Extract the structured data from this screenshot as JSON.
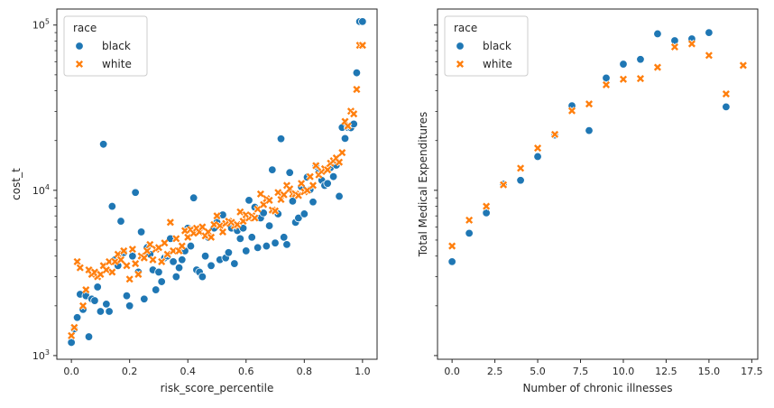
{
  "chart_data": [
    {
      "type": "scatter",
      "title": "",
      "xlabel": "risk_score_percentile",
      "ylabel": "cost_t",
      "y_scale": "log",
      "xlim": [
        -0.05,
        1.05
      ],
      "ylim": [
        950,
        125000
      ],
      "x_ticks": [
        0.0,
        0.2,
        0.4,
        0.6,
        0.8,
        1.0
      ],
      "x_tick_labels": [
        "0.0",
        "0.2",
        "0.4",
        "0.6",
        "0.8",
        "1.0"
      ],
      "y_ticks": [
        1000,
        10000,
        100000
      ],
      "y_tick_labels": [
        {
          "base": "10",
          "exp": "3"
        },
        {
          "base": "10",
          "exp": "4"
        },
        {
          "base": "10",
          "exp": "5"
        }
      ],
      "grid": false,
      "legend": {
        "title": "race",
        "placement": "upper-left",
        "entries": [
          "black",
          "white"
        ]
      },
      "series": [
        {
          "name": "black",
          "color": "#1f77b4",
          "marker": "circle",
          "x": [
            0.0,
            0.01,
            0.02,
            0.03,
            0.04,
            0.05,
            0.06,
            0.07,
            0.08,
            0.09,
            0.1,
            0.11,
            0.12,
            0.13,
            0.14,
            0.15,
            0.16,
            0.17,
            0.18,
            0.19,
            0.2,
            0.21,
            0.22,
            0.23,
            0.24,
            0.25,
            0.26,
            0.27,
            0.28,
            0.29,
            0.3,
            0.31,
            0.32,
            0.33,
            0.34,
            0.35,
            0.36,
            0.37,
            0.38,
            0.39,
            0.4,
            0.41,
            0.42,
            0.43,
            0.44,
            0.45,
            0.46,
            0.47,
            0.48,
            0.49,
            0.5,
            0.51,
            0.52,
            0.53,
            0.54,
            0.55,
            0.56,
            0.57,
            0.58,
            0.59,
            0.6,
            0.61,
            0.62,
            0.63,
            0.64,
            0.65,
            0.66,
            0.67,
            0.68,
            0.69,
            0.7,
            0.71,
            0.72,
            0.73,
            0.74,
            0.75,
            0.76,
            0.77,
            0.78,
            0.79,
            0.8,
            0.81,
            0.82,
            0.83,
            0.84,
            0.85,
            0.86,
            0.87,
            0.88,
            0.89,
            0.9,
            0.91,
            0.92,
            0.93,
            0.94,
            0.95,
            0.96,
            0.97,
            0.98,
            0.99,
            1.0
          ],
          "y": [
            1200,
            1450,
            1700,
            2350,
            1900,
            2300,
            1300,
            2200,
            2150,
            2600,
            1850,
            19000,
            2050,
            1850,
            8000,
            3800,
            3500,
            6500,
            4200,
            2300,
            2000,
            4000,
            9700,
            3200,
            5600,
            2200,
            4500,
            4100,
            3300,
            2500,
            3200,
            2800,
            3900,
            4000,
            5100,
            3700,
            3000,
            3400,
            3800,
            4300,
            5900,
            4600,
            9000,
            3300,
            3200,
            3000,
            4000,
            5200,
            3500,
            5900,
            6400,
            3800,
            7100,
            3900,
            4200,
            5900,
            3600,
            5700,
            5100,
            5900,
            4300,
            8700,
            5200,
            7900,
            4500,
            6800,
            7300,
            4600,
            6100,
            13300,
            4800,
            7200,
            20500,
            5200,
            4700,
            12800,
            8600,
            6400,
            6800,
            10500,
            7200,
            12000,
            10100,
            8500,
            14000,
            12800,
            11500,
            10700,
            11000,
            13700,
            12100,
            14200,
            9200,
            24000,
            20600,
            24000,
            23900,
            25200,
            51400,
            105000,
            105000
          ]
        },
        {
          "name": "white",
          "color": "#ff7f0e",
          "marker": "x",
          "x": [
            0.0,
            0.01,
            0.02,
            0.03,
            0.04,
            0.05,
            0.06,
            0.07,
            0.08,
            0.09,
            0.1,
            0.11,
            0.12,
            0.13,
            0.14,
            0.15,
            0.16,
            0.17,
            0.18,
            0.19,
            0.2,
            0.21,
            0.22,
            0.23,
            0.24,
            0.25,
            0.26,
            0.27,
            0.28,
            0.29,
            0.3,
            0.31,
            0.32,
            0.33,
            0.34,
            0.35,
            0.36,
            0.37,
            0.38,
            0.39,
            0.4,
            0.41,
            0.42,
            0.43,
            0.44,
            0.45,
            0.46,
            0.47,
            0.48,
            0.49,
            0.5,
            0.51,
            0.52,
            0.53,
            0.54,
            0.55,
            0.56,
            0.57,
            0.58,
            0.59,
            0.6,
            0.61,
            0.62,
            0.63,
            0.64,
            0.65,
            0.66,
            0.67,
            0.68,
            0.69,
            0.7,
            0.71,
            0.72,
            0.73,
            0.74,
            0.75,
            0.76,
            0.77,
            0.78,
            0.79,
            0.8,
            0.81,
            0.82,
            0.83,
            0.84,
            0.85,
            0.86,
            0.87,
            0.88,
            0.89,
            0.9,
            0.91,
            0.92,
            0.93,
            0.94,
            0.95,
            0.96,
            0.97,
            0.98,
            0.99,
            1.0
          ],
          "y": [
            1320,
            1480,
            3700,
            3400,
            2000,
            2500,
            3300,
            3100,
            3200,
            3000,
            3100,
            3500,
            3300,
            3700,
            3200,
            3700,
            4100,
            3800,
            4300,
            3500,
            2900,
            4400,
            3600,
            3100,
            4000,
            3900,
            4300,
            4700,
            3800,
            4400,
            4500,
            3700,
            4800,
            4100,
            6400,
            4300,
            5100,
            4300,
            4600,
            5700,
            5200,
            5800,
            5500,
            5900,
            5600,
            6000,
            5300,
            5600,
            5200,
            6200,
            7000,
            6100,
            5600,
            6300,
            6500,
            6400,
            6100,
            6200,
            7400,
            6500,
            7100,
            6800,
            7000,
            6800,
            7700,
            9500,
            8200,
            8900,
            8700,
            7600,
            7500,
            9700,
            8800,
            9400,
            10700,
            10200,
            9500,
            9500,
            9300,
            11000,
            9800,
            10000,
            12100,
            10700,
            14100,
            12400,
            13000,
            13500,
            13300,
            14600,
            15100,
            15700,
            14800,
            16900,
            26100,
            24500,
            30100,
            29000,
            40800,
            75400,
            75400
          ]
        }
      ]
    },
    {
      "type": "scatter",
      "title": "",
      "xlabel": "Number of chronic illnesses",
      "ylabel": "Total Medical Expenditures",
      "y_scale": "log",
      "shared_y_with_left": true,
      "xlim": [
        -0.85,
        17.85
      ],
      "ylim": [
        950,
        125000
      ],
      "x_ticks": [
        0.0,
        2.5,
        5.0,
        7.5,
        10.0,
        12.5,
        15.0,
        17.5
      ],
      "x_tick_labels": [
        "0.0",
        "2.5",
        "5.0",
        "7.5",
        "10.0",
        "12.5",
        "15.0",
        "17.5"
      ],
      "grid": false,
      "legend": {
        "title": "race",
        "placement": "upper-left",
        "entries": [
          "black",
          "white"
        ]
      },
      "series": [
        {
          "name": "black",
          "color": "#1f77b4",
          "marker": "circle",
          "x": [
            0,
            1,
            2,
            3,
            4,
            5,
            6,
            7,
            8,
            9,
            10,
            11,
            12,
            13,
            14,
            15,
            16
          ],
          "y": [
            3700,
            5500,
            7300,
            10900,
            11500,
            16000,
            21600,
            32500,
            23000,
            47800,
            58000,
            62000,
            88500,
            80500,
            82500,
            90000,
            32000
          ]
        },
        {
          "name": "white",
          "color": "#ff7f0e",
          "marker": "x",
          "x": [
            0,
            1,
            2,
            3,
            4,
            5,
            6,
            7,
            8,
            9,
            10,
            11,
            12,
            13,
            14,
            15,
            16,
            17
          ],
          "y": [
            4600,
            6600,
            8000,
            10800,
            13600,
            18000,
            21800,
            30300,
            33300,
            43500,
            47000,
            47400,
            55500,
            73700,
            77000,
            65500,
            38300,
            57000
          ]
        }
      ]
    }
  ]
}
